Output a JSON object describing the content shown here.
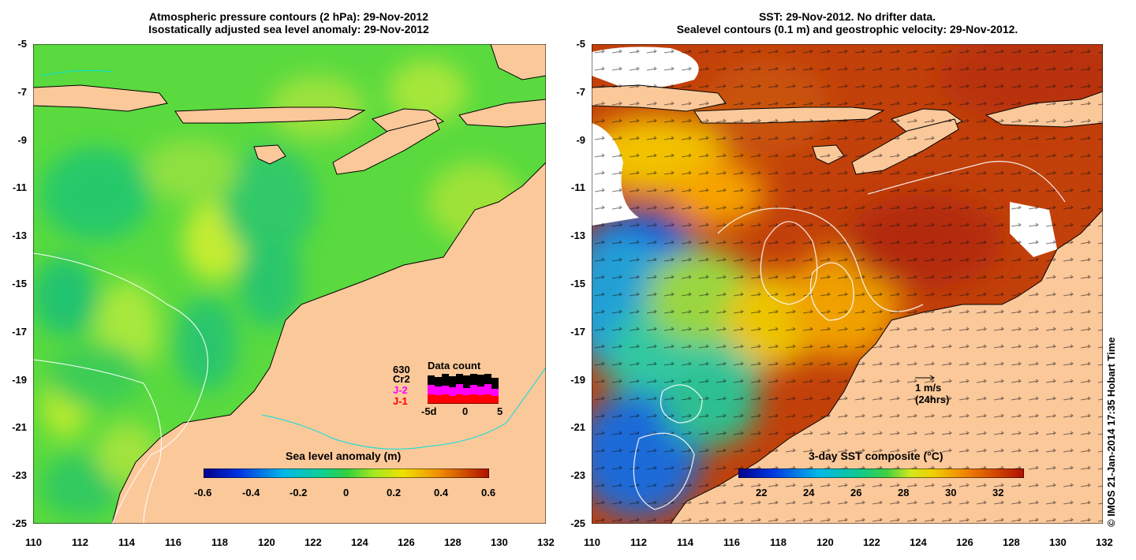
{
  "left_panel": {
    "title_line1": "Atmospheric pressure contours (2 hPa): 29-Nov-2012",
    "title_line2": "Isostatically adjusted sea level anomaly: 29-Nov-2012",
    "colorbar_label": "Sea level anomaly (m)",
    "colorbar_ticks": [
      "-0.6",
      "-0.4",
      "-0.2",
      "0",
      "0.2",
      "0.4",
      "0.6"
    ],
    "inset": {
      "title": "Data count",
      "satellites": [
        "630",
        "Cr2",
        "J-2",
        "J-1"
      ],
      "satellite_colors": [
        "#000000",
        "#000000",
        "#ff00ff",
        "#ff0000"
      ],
      "x_ticks": [
        "-5d",
        "0",
        "5"
      ]
    }
  },
  "right_panel": {
    "title_line1": "SST: 29-Nov-2012. No drifter data.",
    "title_line2": "Sealevel contours (0.1 m) and geostrophic velocity: 29-Nov-2012.",
    "colorbar_label": "3-day SST composite (°C)",
    "colorbar_ticks": [
      "22",
      "24",
      "26",
      "28",
      "30",
      "32"
    ],
    "velocity_scale_line1": "1 m/s",
    "velocity_scale_line2": "(24hrs)"
  },
  "axes": {
    "x_ticks": [
      "110",
      "112",
      "114",
      "116",
      "118",
      "120",
      "122",
      "124",
      "126",
      "128",
      "130",
      "132"
    ],
    "y_ticks": [
      "-5",
      "-7",
      "-9",
      "-11",
      "-13",
      "-15",
      "-17",
      "-19",
      "-21",
      "-23",
      "-25"
    ]
  },
  "credit": "© IMOS 21-Jan-2014 17:35 Hobart Time",
  "colors": {
    "land": "#fbc89a",
    "ocean_green": "#5fdd3c"
  }
}
